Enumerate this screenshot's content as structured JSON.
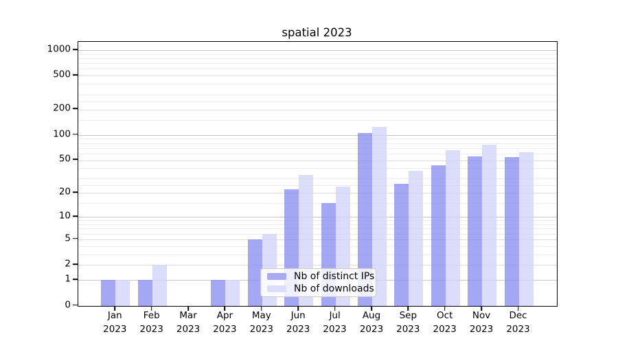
{
  "chart_data": {
    "type": "bar",
    "title": "spatial 2023",
    "yscale": "log1p",
    "grid": true,
    "categories": [
      "Jan",
      "Feb",
      "Mar",
      "Apr",
      "May",
      "Jun",
      "Jul",
      "Aug",
      "Sep",
      "Oct",
      "Nov",
      "Dec"
    ],
    "year": "2023",
    "series": [
      {
        "name": "Nb of distinct IPs",
        "values": [
          1,
          1,
          0,
          1,
          5,
          22,
          15,
          105,
          26,
          43,
          56,
          54
        ],
        "color": "rgba(134,139,240,0.75)",
        "legend_color": "#a8abf4"
      },
      {
        "name": "Nb of downloads",
        "values": [
          1,
          2,
          0,
          1,
          6,
          33,
          24,
          125,
          37,
          66,
          77,
          62
        ],
        "color": "rgba(207,210,248,0.75)",
        "legend_color": "#dbddfa"
      }
    ],
    "yticks": [
      0,
      1,
      2,
      5,
      10,
      20,
      50,
      100,
      200,
      500,
      1000
    ],
    "decade_ticks": [
      1,
      10,
      100,
      1000
    ],
    "minor_gridlines": [
      3,
      4,
      6,
      7,
      8,
      9,
      15,
      25,
      30,
      40,
      60,
      70,
      80,
      90,
      150,
      250,
      300,
      400,
      600,
      700,
      800,
      900
    ],
    "ylim": [
      0,
      1259
    ],
    "legend_position": "lower center"
  },
  "colors": {
    "grid_decade": "#c6c6c6",
    "grid_major": "#dcdcdc",
    "grid_minor": "#ededed",
    "spine": "#000000",
    "text": "#000000",
    "legend_border": "#cbcbcb",
    "legend_bg": "rgba(255,255,255,0.82)"
  }
}
